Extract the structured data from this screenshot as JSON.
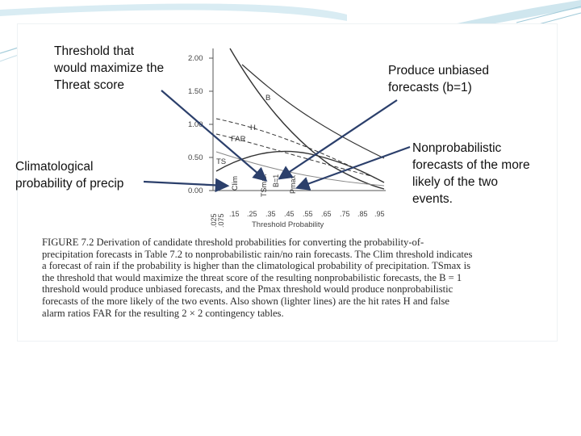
{
  "slide": {
    "background": "#ffffff",
    "accent_color": "#3aa6c4"
  },
  "callouts": {
    "tsmax": "Threshold that would maximize the Threat score",
    "tsmax_lines": [
      "Threshold that",
      "would maximize the",
      "Threat score"
    ],
    "clim_lines": [
      "Climatological",
      "probability of precip"
    ],
    "unbiased_lines": [
      "Produce unbiased",
      "forecasts (b=1)"
    ],
    "pmax_lines": [
      "Nonprobabilistic",
      "forecasts of the more",
      "likely of the two",
      "events."
    ]
  },
  "figure": {
    "y_ticks": [
      "2.00",
      "1.50",
      "1.00",
      "0.50",
      "0.00"
    ],
    "x_ticks": [
      ".025",
      ".075",
      ".15",
      ".25",
      ".35",
      ".45",
      ".55",
      ".65",
      ".75",
      ".85",
      ".95"
    ],
    "x_axis_label": "Threshold Probability",
    "curve_labels": {
      "b": "B",
      "h": "H",
      "far": "FAR",
      "ts": "TS"
    },
    "marker_labels": {
      "clim": "Clim",
      "tsmax": "TSmax",
      "b1": "B=1",
      "pmax": "Pmax"
    },
    "caption_lines": [
      "FIGURE 7.2   Derivation of candidate threshold probabilities for converting the probability-of-",
      "precipitation forecasts in Table 7.2 to nonprobabilistic rain/no rain forecasts. The Clim threshold indicates",
      "a forecast of rain if the probability is higher than the climatological probability of precipitation. TSmax is",
      "the threshold that would maximize the threat score of the resulting nonprobabilistic forecasts, the B = 1",
      "threshold would produce unbiased forecasts, and the Pmax threshold would produce nonprobabilistic",
      "forecasts of the more likely of the two events. Also shown (lighter lines) are the hit rates H and false",
      "alarm ratios FAR for the resulting 2 × 2 contingency tables."
    ]
  }
}
